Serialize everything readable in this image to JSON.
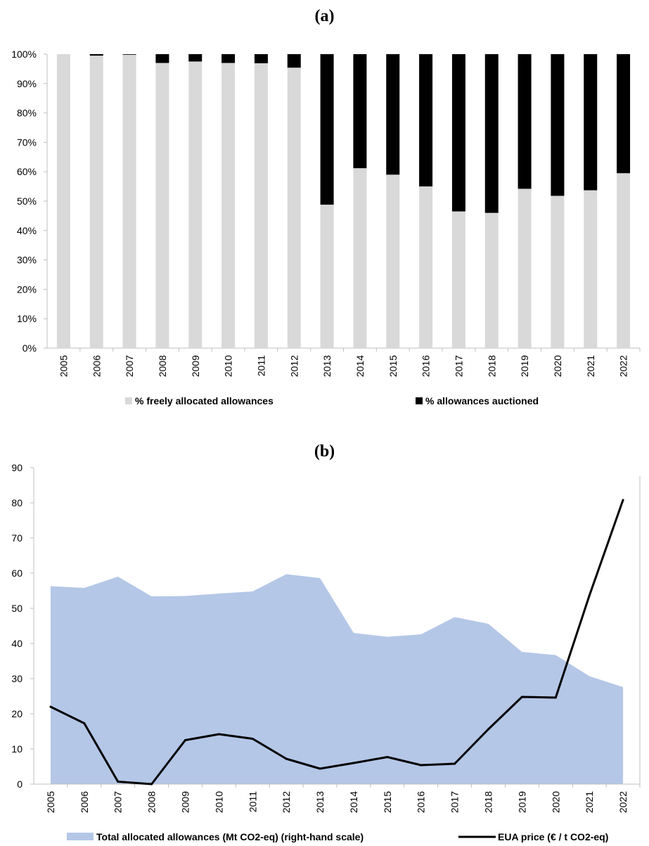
{
  "panels": {
    "a_label": "(a)",
    "b_label": "(b)"
  },
  "chart_data": [
    {
      "type": "bar",
      "stacked": true,
      "categories": [
        "2005",
        "2006",
        "2007",
        "2008",
        "2009",
        "2010",
        "2011",
        "2012",
        "2013",
        "2014",
        "2015",
        "2016",
        "2017",
        "2018",
        "2019",
        "2020",
        "2021",
        "2022"
      ],
      "series": [
        {
          "name": "% freely allocated allowances",
          "color": "#d9d9d9",
          "values": [
            100,
            99.5,
            99.8,
            97,
            97.5,
            97,
            96.9,
            95.4,
            48.8,
            61.2,
            59,
            55,
            46.5,
            46,
            54.2,
            51.8,
            53.7,
            59.5
          ]
        },
        {
          "name": "% allowances auctioned",
          "color": "#000000",
          "values": [
            0,
            0.5,
            0.2,
            3,
            2.5,
            3,
            3.1,
            4.6,
            51.2,
            38.8,
            41,
            45,
            53.5,
            54,
            45.8,
            48.2,
            46.3,
            40.5
          ]
        }
      ],
      "yticks": [
        "0%",
        "10%",
        "20%",
        "30%",
        "40%",
        "50%",
        "60%",
        "70%",
        "80%",
        "90%",
        "100%"
      ],
      "ylim": [
        0,
        100
      ],
      "legend_position": "bottom"
    },
    {
      "type": "line",
      "categories": [
        "2005",
        "2006",
        "2007",
        "2008",
        "2009",
        "2010",
        "2011",
        "2012",
        "2013",
        "2014",
        "2015",
        "2016",
        "2017",
        "2018",
        "2019",
        "2020",
        "2021",
        "2022"
      ],
      "series": [
        {
          "name": "Total allocated allowances (Mt CO2-eq) (right-hand scale)",
          "kind": "area",
          "color": "#b4c7e7",
          "values": [
            56.3,
            55.8,
            59,
            53.4,
            53.5,
            54.2,
            54.8,
            59.7,
            58.6,
            43,
            41.9,
            42.6,
            47.5,
            45.6,
            37.6,
            36.7,
            30.7,
            27.6
          ]
        },
        {
          "name": "EUA price (€ / t CO2-eq)",
          "kind": "line",
          "color": "#000000",
          "values": [
            22,
            17.3,
            0.7,
            0,
            12.5,
            14.2,
            12.9,
            7.2,
            4.4,
            6,
            7.7,
            5.4,
            5.8,
            15.6,
            24.8,
            24.6,
            53.6,
            80.8
          ]
        }
      ],
      "yticks": [
        "0",
        "10",
        "20",
        "30",
        "40",
        "50",
        "60",
        "70",
        "80",
        "90"
      ],
      "ylim": [
        0,
        90
      ],
      "legend_position": "bottom"
    }
  ]
}
